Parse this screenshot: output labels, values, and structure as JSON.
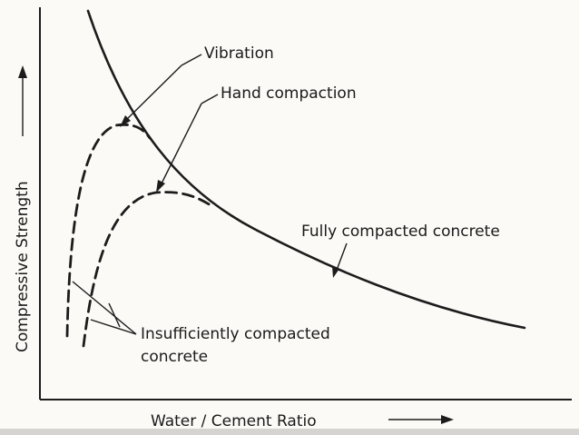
{
  "figure": {
    "ylabel": "Compressive Strength",
    "xlabel": "Water / Cement Ratio",
    "labels": {
      "vibration": "Vibration",
      "hand": "Hand compaction",
      "full": "Fully compacted concrete",
      "insufficient_line1": "Insufficiently compacted",
      "insufficient_line2": "concrete"
    }
  }
}
